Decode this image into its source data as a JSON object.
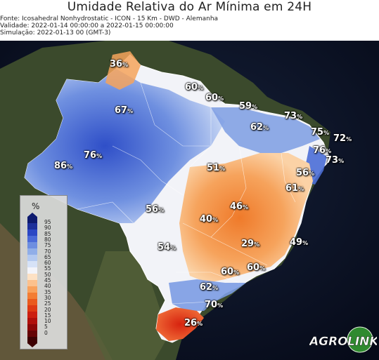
{
  "header": {
    "title": "Umidade Relativa do Ar Mínima em 24H",
    "source": "Fonte: Icosahedral Nonhydrostatic - ICON - 15 Km - DWD - Alemanha",
    "validity": "Validade: 2022-01-14 00:00:00 a 2022-01-15 00:00:00",
    "simulation": "Simulação: 2022-01-13 00 (GMT-3)"
  },
  "map": {
    "labels": [
      {
        "value": "36",
        "unit": "%"
      },
      {
        "value": "60",
        "unit": "%"
      },
      {
        "value": "60",
        "unit": "%"
      },
      {
        "value": "67",
        "unit": "%"
      },
      {
        "value": "59",
        "unit": "%"
      },
      {
        "value": "73",
        "unit": "%"
      },
      {
        "value": "62",
        "unit": "%"
      },
      {
        "value": "75",
        "unit": "%"
      },
      {
        "value": "72",
        "unit": "%"
      },
      {
        "value": "76",
        "unit": "%"
      },
      {
        "value": "73",
        "unit": "%"
      },
      {
        "value": "76",
        "unit": "%"
      },
      {
        "value": "86",
        "unit": "%"
      },
      {
        "value": "51",
        "unit": "%"
      },
      {
        "value": "56",
        "unit": "%"
      },
      {
        "value": "61",
        "unit": "%"
      },
      {
        "value": "46",
        "unit": "%"
      },
      {
        "value": "56",
        "unit": "%"
      },
      {
        "value": "40",
        "unit": "%"
      },
      {
        "value": "29",
        "unit": "%"
      },
      {
        "value": "49",
        "unit": "%"
      },
      {
        "value": "54",
        "unit": "%"
      },
      {
        "value": "60",
        "unit": "%"
      },
      {
        "value": "60",
        "unit": "%"
      },
      {
        "value": "62",
        "unit": "%"
      },
      {
        "value": "70",
        "unit": "%"
      },
      {
        "value": "26",
        "unit": "%"
      }
    ]
  },
  "legend": {
    "unit": "%",
    "ticks": [
      "95",
      "90",
      "85",
      "80",
      "75",
      "70",
      "65",
      "60",
      "55",
      "50",
      "45",
      "40",
      "35",
      "30",
      "25",
      "20",
      "15",
      "10",
      "5",
      "0"
    ],
    "colors": [
      "#0d1a6e",
      "#1c2f9a",
      "#2b47c4",
      "#4a6ad8",
      "#6d8ee0",
      "#90aee8",
      "#b3c9f0",
      "#d6e2f7",
      "#f3f4fa",
      "#fde1c4",
      "#fcc18d",
      "#f9a15c",
      "#f37d34",
      "#ea5a1e",
      "#de3a14",
      "#cc1f10",
      "#b0100c",
      "#8c0708",
      "#650305",
      "#3d0002"
    ]
  },
  "brand": {
    "text_a": "AGRO",
    "text_b": "LINK",
    "color": "#ffffff"
  }
}
